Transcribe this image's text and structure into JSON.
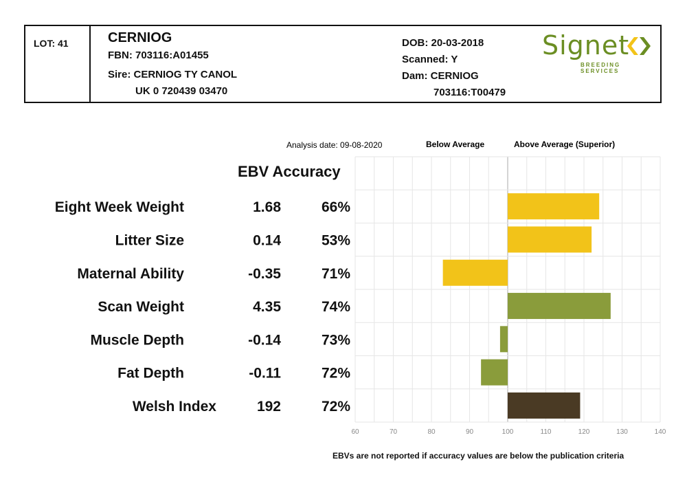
{
  "header": {
    "lot": "LOT: 41",
    "name": "CERNIOG",
    "fbn": "FBN: 703116:A01455",
    "sire_line1": "Sire: CERNIOG TY CANOL",
    "sire_line2": "UK 0 720439 03470",
    "dob": "DOB: 20-03-2018",
    "scanned": "Scanned: Y",
    "dam_line1": "Dam: CERNIOG",
    "dam_line2": "703116:T00479",
    "logo_text": "Signet",
    "logo_sub": "BREEDING SERVICES"
  },
  "chart_header": {
    "analysis_date": "Analysis date: 09-08-2020",
    "below_average": "Below Average",
    "above_average": "Above Average (Superior)",
    "ebv_accuracy": "EBV Accuracy"
  },
  "footnote": "EBVs are not reported if accuracy values are below the publication criteria",
  "colors": {
    "yellow": "#f2c319",
    "green": "#8a9c3b",
    "brown": "#4a3a24",
    "logo_green": "#6b8e23"
  },
  "chart_data": {
    "type": "bar",
    "orientation": "horizontal",
    "baseline": 100,
    "xlim": [
      60,
      140
    ],
    "xticks": [
      60,
      70,
      80,
      90,
      100,
      110,
      120,
      130,
      140
    ],
    "grid": true,
    "rows": [
      {
        "trait": "Eight Week Weight",
        "ebv": "1.68",
        "accuracy": "66%",
        "value": 124,
        "color": "yellow"
      },
      {
        "trait": "Litter Size",
        "ebv": "0.14",
        "accuracy": "53%",
        "value": 122,
        "color": "yellow"
      },
      {
        "trait": "Maternal Ability",
        "ebv": "-0.35",
        "accuracy": "71%",
        "value": 83,
        "color": "yellow"
      },
      {
        "trait": "Scan Weight",
        "ebv": "4.35",
        "accuracy": "74%",
        "value": 127,
        "color": "green"
      },
      {
        "trait": "Muscle Depth",
        "ebv": "-0.14",
        "accuracy": "73%",
        "value": 98,
        "color": "green"
      },
      {
        "trait": "Fat Depth",
        "ebv": "-0.11",
        "accuracy": "72%",
        "value": 93,
        "color": "green"
      },
      {
        "trait": "Welsh Index",
        "ebv": "192",
        "accuracy": "72%",
        "value": 119,
        "color": "brown"
      }
    ]
  }
}
